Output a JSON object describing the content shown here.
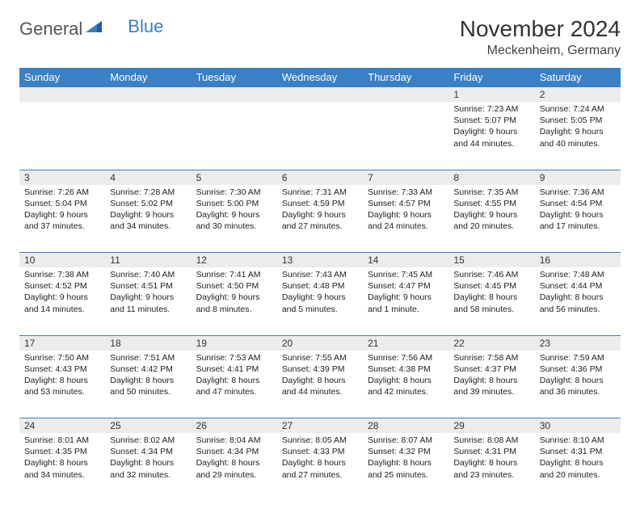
{
  "logo": {
    "text1": "General",
    "text2": "Blue"
  },
  "title": "November 2024",
  "location": "Meckenheim, Germany",
  "header_bg": "#3b7fc4",
  "daynum_bg": "#ececec",
  "week_divider": "#3b7fc4",
  "page_bg": "#ffffff",
  "text_color": "#222222",
  "title_fontsize": 28,
  "header_fontsize": 13,
  "cell_fontsize": 10.5,
  "days_of_week": [
    "Sunday",
    "Monday",
    "Tuesday",
    "Wednesday",
    "Thursday",
    "Friday",
    "Saturday"
  ],
  "weeks": [
    {
      "nums": [
        "",
        "",
        "",
        "",
        "",
        "1",
        "2"
      ],
      "cells": [
        null,
        null,
        null,
        null,
        null,
        {
          "sunrise": "Sunrise: 7:23 AM",
          "sunset": "Sunset: 5:07 PM",
          "daylight": "Daylight: 9 hours and 44 minutes."
        },
        {
          "sunrise": "Sunrise: 7:24 AM",
          "sunset": "Sunset: 5:05 PM",
          "daylight": "Daylight: 9 hours and 40 minutes."
        }
      ]
    },
    {
      "nums": [
        "3",
        "4",
        "5",
        "6",
        "7",
        "8",
        "9"
      ],
      "cells": [
        {
          "sunrise": "Sunrise: 7:26 AM",
          "sunset": "Sunset: 5:04 PM",
          "daylight": "Daylight: 9 hours and 37 minutes."
        },
        {
          "sunrise": "Sunrise: 7:28 AM",
          "sunset": "Sunset: 5:02 PM",
          "daylight": "Daylight: 9 hours and 34 minutes."
        },
        {
          "sunrise": "Sunrise: 7:30 AM",
          "sunset": "Sunset: 5:00 PM",
          "daylight": "Daylight: 9 hours and 30 minutes."
        },
        {
          "sunrise": "Sunrise: 7:31 AM",
          "sunset": "Sunset: 4:59 PM",
          "daylight": "Daylight: 9 hours and 27 minutes."
        },
        {
          "sunrise": "Sunrise: 7:33 AM",
          "sunset": "Sunset: 4:57 PM",
          "daylight": "Daylight: 9 hours and 24 minutes."
        },
        {
          "sunrise": "Sunrise: 7:35 AM",
          "sunset": "Sunset: 4:55 PM",
          "daylight": "Daylight: 9 hours and 20 minutes."
        },
        {
          "sunrise": "Sunrise: 7:36 AM",
          "sunset": "Sunset: 4:54 PM",
          "daylight": "Daylight: 9 hours and 17 minutes."
        }
      ]
    },
    {
      "nums": [
        "10",
        "11",
        "12",
        "13",
        "14",
        "15",
        "16"
      ],
      "cells": [
        {
          "sunrise": "Sunrise: 7:38 AM",
          "sunset": "Sunset: 4:52 PM",
          "daylight": "Daylight: 9 hours and 14 minutes."
        },
        {
          "sunrise": "Sunrise: 7:40 AM",
          "sunset": "Sunset: 4:51 PM",
          "daylight": "Daylight: 9 hours and 11 minutes."
        },
        {
          "sunrise": "Sunrise: 7:41 AM",
          "sunset": "Sunset: 4:50 PM",
          "daylight": "Daylight: 9 hours and 8 minutes."
        },
        {
          "sunrise": "Sunrise: 7:43 AM",
          "sunset": "Sunset: 4:48 PM",
          "daylight": "Daylight: 9 hours and 5 minutes."
        },
        {
          "sunrise": "Sunrise: 7:45 AM",
          "sunset": "Sunset: 4:47 PM",
          "daylight": "Daylight: 9 hours and 1 minute."
        },
        {
          "sunrise": "Sunrise: 7:46 AM",
          "sunset": "Sunset: 4:45 PM",
          "daylight": "Daylight: 8 hours and 58 minutes."
        },
        {
          "sunrise": "Sunrise: 7:48 AM",
          "sunset": "Sunset: 4:44 PM",
          "daylight": "Daylight: 8 hours and 56 minutes."
        }
      ]
    },
    {
      "nums": [
        "17",
        "18",
        "19",
        "20",
        "21",
        "22",
        "23"
      ],
      "cells": [
        {
          "sunrise": "Sunrise: 7:50 AM",
          "sunset": "Sunset: 4:43 PM",
          "daylight": "Daylight: 8 hours and 53 minutes."
        },
        {
          "sunrise": "Sunrise: 7:51 AM",
          "sunset": "Sunset: 4:42 PM",
          "daylight": "Daylight: 8 hours and 50 minutes."
        },
        {
          "sunrise": "Sunrise: 7:53 AM",
          "sunset": "Sunset: 4:41 PM",
          "daylight": "Daylight: 8 hours and 47 minutes."
        },
        {
          "sunrise": "Sunrise: 7:55 AM",
          "sunset": "Sunset: 4:39 PM",
          "daylight": "Daylight: 8 hours and 44 minutes."
        },
        {
          "sunrise": "Sunrise: 7:56 AM",
          "sunset": "Sunset: 4:38 PM",
          "daylight": "Daylight: 8 hours and 42 minutes."
        },
        {
          "sunrise": "Sunrise: 7:58 AM",
          "sunset": "Sunset: 4:37 PM",
          "daylight": "Daylight: 8 hours and 39 minutes."
        },
        {
          "sunrise": "Sunrise: 7:59 AM",
          "sunset": "Sunset: 4:36 PM",
          "daylight": "Daylight: 8 hours and 36 minutes."
        }
      ]
    },
    {
      "nums": [
        "24",
        "25",
        "26",
        "27",
        "28",
        "29",
        "30"
      ],
      "cells": [
        {
          "sunrise": "Sunrise: 8:01 AM",
          "sunset": "Sunset: 4:35 PM",
          "daylight": "Daylight: 8 hours and 34 minutes."
        },
        {
          "sunrise": "Sunrise: 8:02 AM",
          "sunset": "Sunset: 4:34 PM",
          "daylight": "Daylight: 8 hours and 32 minutes."
        },
        {
          "sunrise": "Sunrise: 8:04 AM",
          "sunset": "Sunset: 4:34 PM",
          "daylight": "Daylight: 8 hours and 29 minutes."
        },
        {
          "sunrise": "Sunrise: 8:05 AM",
          "sunset": "Sunset: 4:33 PM",
          "daylight": "Daylight: 8 hours and 27 minutes."
        },
        {
          "sunrise": "Sunrise: 8:07 AM",
          "sunset": "Sunset: 4:32 PM",
          "daylight": "Daylight: 8 hours and 25 minutes."
        },
        {
          "sunrise": "Sunrise: 8:08 AM",
          "sunset": "Sunset: 4:31 PM",
          "daylight": "Daylight: 8 hours and 23 minutes."
        },
        {
          "sunrise": "Sunrise: 8:10 AM",
          "sunset": "Sunset: 4:31 PM",
          "daylight": "Daylight: 8 hours and 20 minutes."
        }
      ]
    }
  ]
}
